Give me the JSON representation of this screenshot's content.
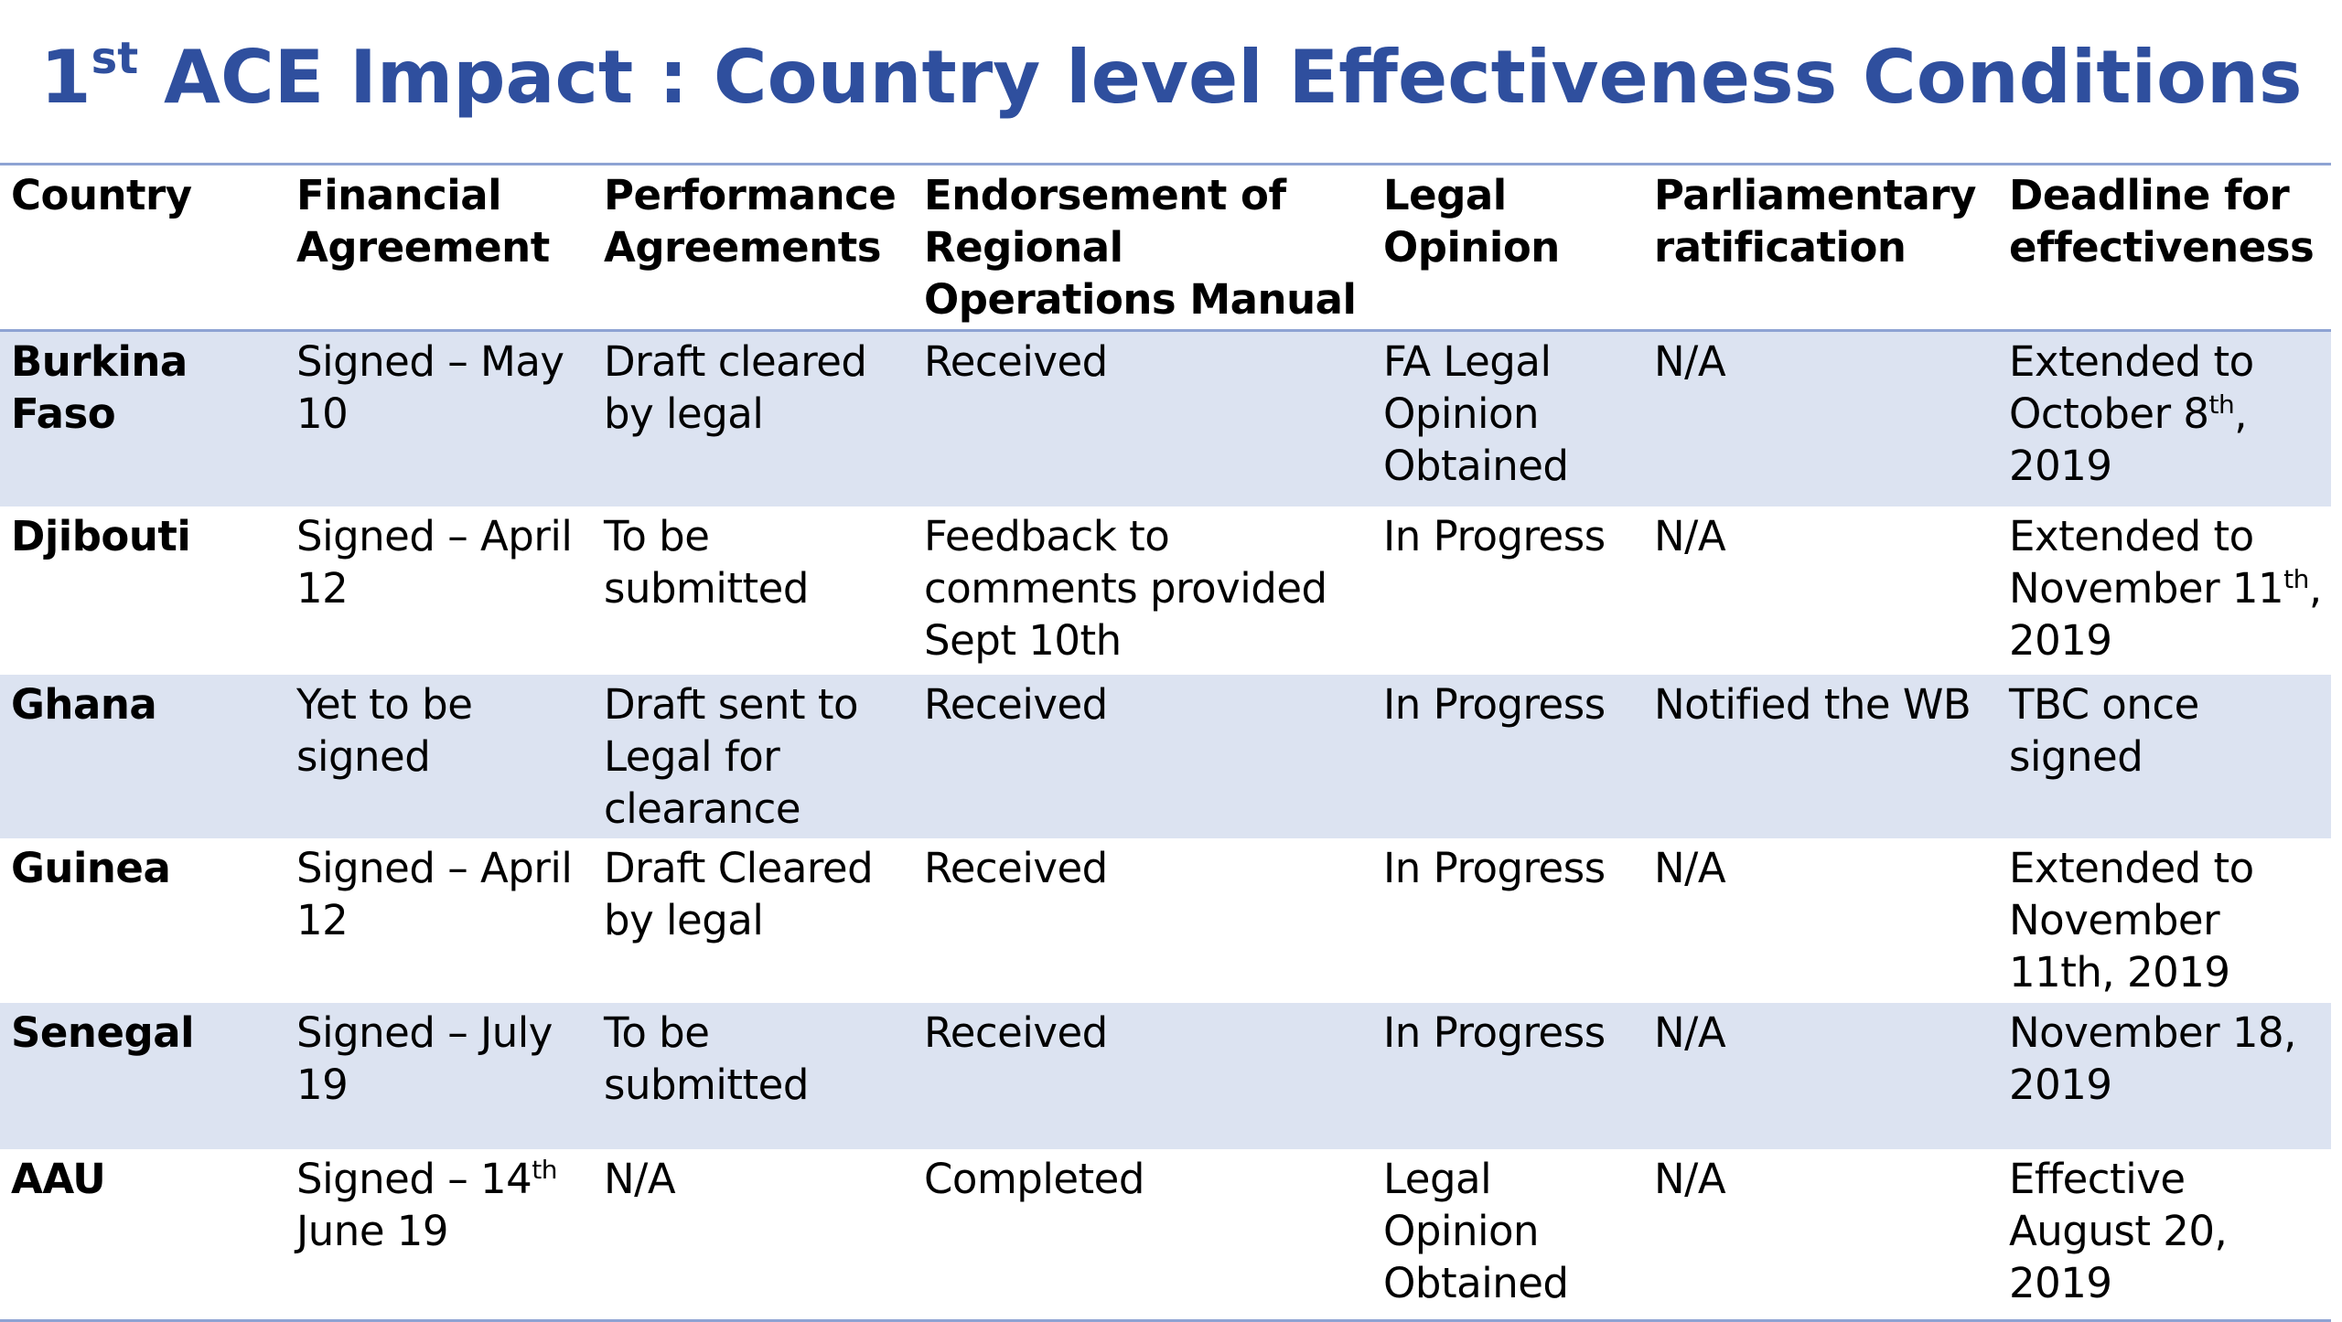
{
  "title": {
    "prefix": "1",
    "superscript": "st",
    "text": " ACE Impact : Country level Effectiveness Conditions"
  },
  "table": {
    "headers": [
      "Country",
      "Financial Agreement",
      "Performance Agreements",
      "Endorsement of Regional Operations Manual",
      "Legal Opinion",
      "Parliamentary ratification",
      "Deadline for effectiveness"
    ],
    "rows": [
      {
        "country": "Burkina Faso",
        "financial": "Signed – May 10",
        "performance": "Draft cleared by legal",
        "endorsement": "Received",
        "legal": "FA Legal Opinion Obtained",
        "parliament": "N/A",
        "deadline_pre": "Extended to October 8",
        "deadline_sup": "th",
        "deadline_post": ", 2019"
      },
      {
        "country": "Djibouti",
        "financial": "Signed – April 12",
        "performance": "To be submitted",
        "endorsement": "Feedback to comments provided Sept 10th",
        "legal": "In Progress",
        "parliament": "N/A",
        "deadline_pre": "Extended to November 11",
        "deadline_sup": "th",
        "deadline_post": ", 2019"
      },
      {
        "country": "Ghana",
        "financial": "Yet to be signed",
        "performance": "Draft sent to Legal for clearance",
        "endorsement": "Received",
        "legal": "In Progress",
        "parliament": "Notified the WB",
        "deadline": "TBC once signed"
      },
      {
        "country": "Guinea",
        "financial": "Signed – April 12",
        "performance": "Draft Cleared by legal",
        "endorsement": "Received",
        "legal": "In Progress",
        "parliament": "N/A",
        "deadline": "Extended to November 11th, 2019"
      },
      {
        "country": "Senegal",
        "financial": "Signed – July 19",
        "performance": "To be submitted",
        "endorsement": "Received",
        "legal": "In Progress",
        "parliament": "N/A",
        "deadline": "November 18, 2019"
      },
      {
        "country": "AAU",
        "financial_pre": "Signed – 14",
        "financial_sup": "th",
        "financial_post": " June 19",
        "performance": "N/A",
        "endorsement": "Completed",
        "legal": "Legal Opinion Obtained",
        "parliament": "N/A",
        "deadline": "Effective August 20, 2019"
      }
    ]
  },
  "colors": {
    "title": "#2f4f9e",
    "row_band": "#dce3f1",
    "rule": "#8ea3d3"
  }
}
